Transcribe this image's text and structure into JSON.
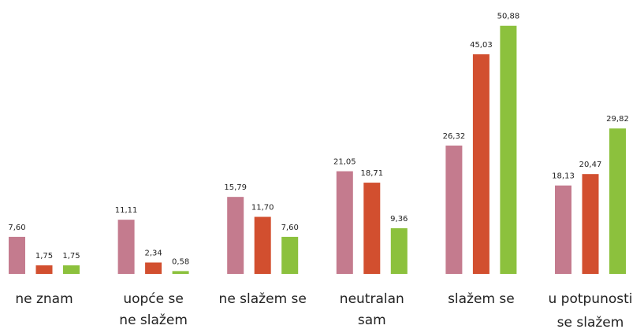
{
  "chart_data": {
    "type": "bar",
    "categories": [
      [
        "ne znam"
      ],
      [
        "uopće se",
        "ne slažem"
      ],
      [
        "ne slažem se"
      ],
      [
        "neutralan",
        "sam"
      ],
      [
        "slažem se"
      ],
      [
        "u potpunosti",
        "se slažem"
      ]
    ],
    "series": [
      {
        "color": "#c47b8e",
        "values": [
          7.6,
          11.11,
          15.79,
          21.05,
          26.32,
          18.13
        ],
        "value_labels": [
          "7,60",
          "11,11",
          "15,79",
          "21,05",
          "26,32",
          "18,13"
        ]
      },
      {
        "color": "#d24f2f",
        "values": [
          1.75,
          2.34,
          11.7,
          18.71,
          45.03,
          20.47
        ],
        "value_labels": [
          "1,75",
          "2,34",
          "11,70",
          "18,71",
          "45,03",
          "20,47"
        ]
      },
      {
        "color": "#8cc13d",
        "values": [
          1.75,
          0.58,
          7.6,
          9.36,
          50.88,
          29.82
        ],
        "value_labels": [
          "1,75",
          "0,58",
          "7,60",
          "9,36",
          "50,88",
          "29,82"
        ]
      }
    ],
    "ylim": [
      0,
      51
    ]
  }
}
